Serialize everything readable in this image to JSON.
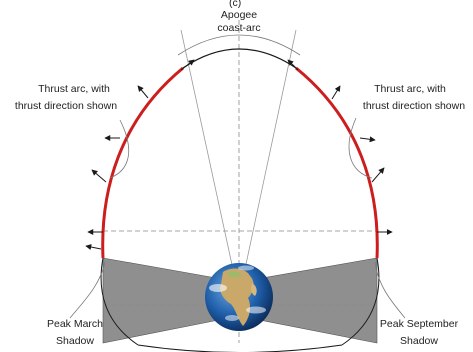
{
  "panel_label": "(c)",
  "labels": {
    "apogee_line1": "Apogee",
    "apogee_line2": "coast-arc",
    "thrust_left_line1": "Thrust arc, with",
    "thrust_left_line2": "thrust direction shown",
    "thrust_right_line1": "Thrust arc, with",
    "thrust_right_line2": "thrust direction shown",
    "march_line1": "Peak March",
    "march_line2": "Shadow",
    "september_line1": "Peak September",
    "september_line2": "Shadow"
  },
  "colors": {
    "orbit": "#1a1a1a",
    "thrust_arc": "#cc1e1e",
    "shadow": "#8f8f8f",
    "guide": "#9a9a9a",
    "earth_ocean": "#1f5faa",
    "earth_land": "#c9a86a"
  }
}
